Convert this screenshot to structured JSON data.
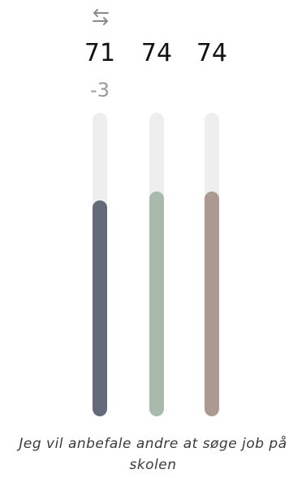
{
  "swap": {
    "icon": "swap-arrows-icon"
  },
  "scores": [
    {
      "value": "71",
      "level": 0.71,
      "color": "#646a79"
    },
    {
      "value": "74",
      "level": 0.74,
      "color": "#a9b9ac"
    },
    {
      "value": "74",
      "level": 0.74,
      "color": "#ac9a90"
    }
  ],
  "difference": "-3",
  "statement": "Jeg vil anbefale andre at søge job på skolen"
}
